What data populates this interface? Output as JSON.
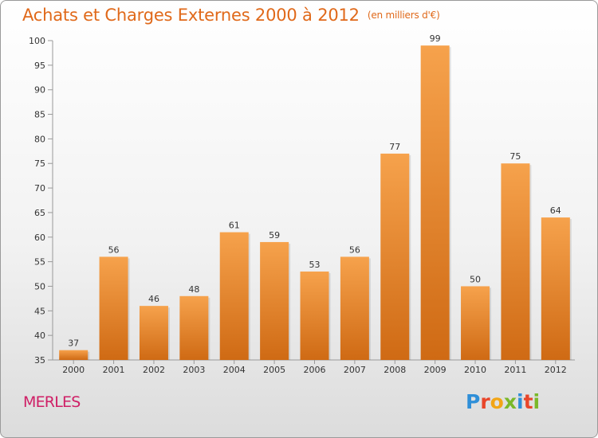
{
  "title": "Achats et Charges Externes 2000 à 2012",
  "subtitle": "(en milliers d'€)",
  "commune": "MERLES",
  "logo": {
    "letters": [
      "P",
      "r",
      "o",
      "x",
      "i",
      "t",
      "i"
    ],
    "colors": [
      "#2f8fd8",
      "#e8462a",
      "#f2a516",
      "#7ab829",
      "#2f8fd8",
      "#e8462a",
      "#7ab829"
    ]
  },
  "colors": {
    "bar_top": "#f6a24c",
    "bar_bottom": "#cf6a14",
    "title": "#e0691a",
    "commune": "#cf1f66"
  },
  "chart_data": {
    "type": "bar",
    "categories": [
      "2000",
      "2001",
      "2002",
      "2003",
      "2004",
      "2005",
      "2006",
      "2007",
      "2008",
      "2009",
      "2010",
      "2011",
      "2012"
    ],
    "values": [
      37,
      56,
      46,
      48,
      61,
      59,
      53,
      56,
      77,
      99,
      50,
      75,
      64
    ],
    "title": "Achats et Charges Externes 2000 à 2012",
    "subtitle": "(en milliers d'€)",
    "ylim": [
      35,
      100
    ],
    "yticks": [
      35,
      40,
      45,
      50,
      55,
      60,
      65,
      70,
      75,
      80,
      85,
      90,
      95,
      100
    ],
    "grid": false
  }
}
